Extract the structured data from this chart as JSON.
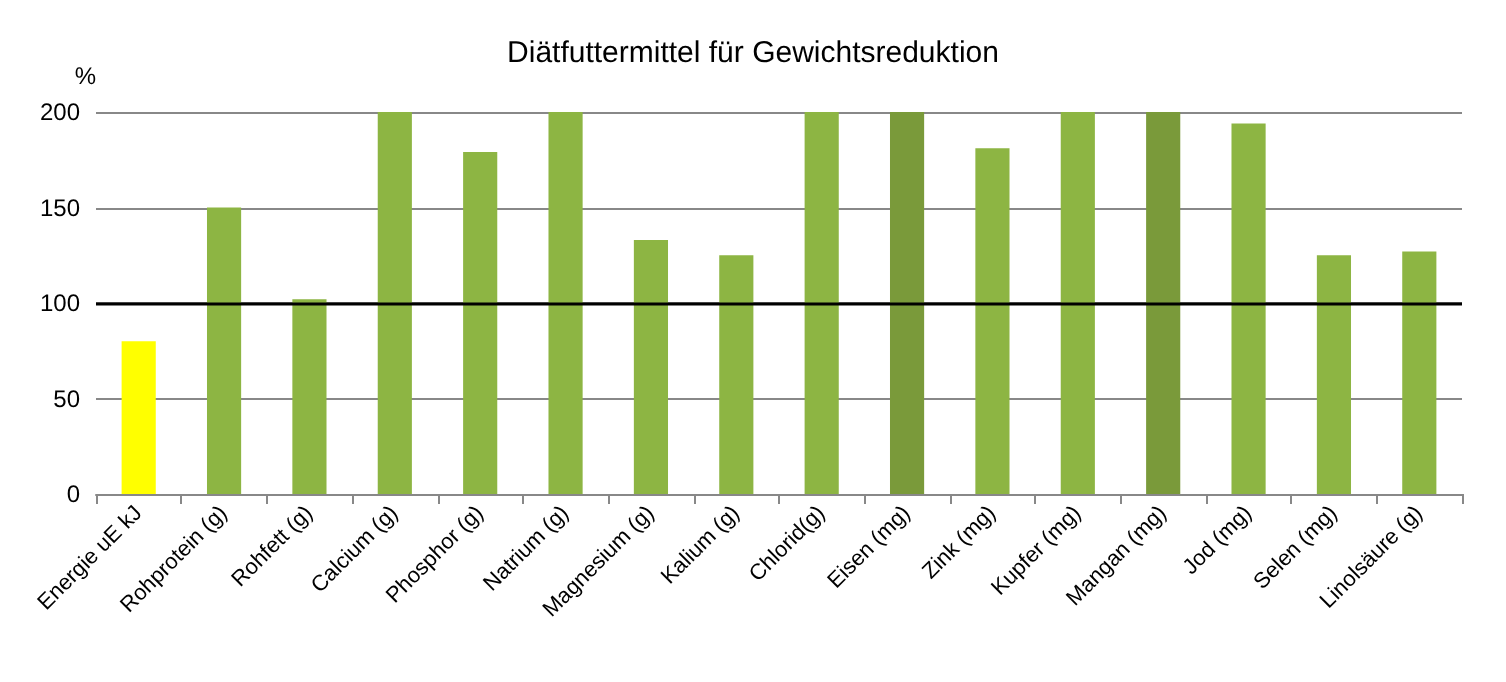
{
  "chart_data": {
    "type": "bar",
    "title": "Diätfuttermittel für Gewichtsreduktion",
    "ylabel": "%",
    "categories": [
      "Energie uE kJ",
      "Rohprotein (g)",
      "Rohfett (g)",
      "Calcium (g)",
      "Phosphor (g)",
      "Natrium (g)",
      "Magnesium (g)",
      "Kalium (g)",
      "Chlorid(g)",
      "Eisen (mg)",
      "Zink (mg)",
      "Kupfer (mg)",
      "Mangan (mg)",
      "Jod (mg)",
      "Selen (mg)",
      "Linolsäure (g)"
    ],
    "values": [
      80,
      150,
      102,
      200,
      179,
      200,
      133,
      125,
      200,
      200,
      181,
      200,
      200,
      194,
      125,
      127
    ],
    "colors": [
      "#ffff00",
      "#8db543",
      "#8db543",
      "#8db543",
      "#8db543",
      "#8db543",
      "#8db543",
      "#8db543",
      "#8db543",
      "#7a9a3a",
      "#8db543",
      "#8db543",
      "#7a9a3a",
      "#8db543",
      "#8db543",
      "#8db543"
    ],
    "ylim": [
      0,
      200
    ],
    "yticks": [
      0,
      50,
      100,
      150,
      200
    ],
    "grid": "y",
    "ref_lines": [
      {
        "axis": "y",
        "value": 100,
        "color": "#000000"
      }
    ]
  }
}
